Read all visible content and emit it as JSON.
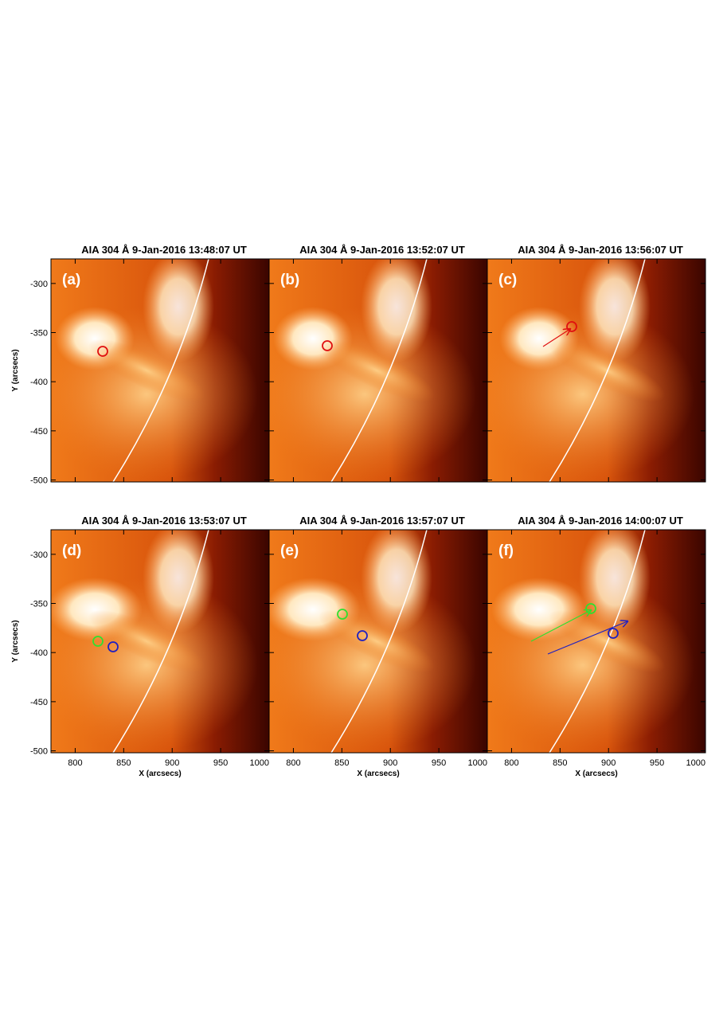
{
  "panels": [
    {
      "title": "AIA 304 Å 9-Jan-2016 13:48:07 UT",
      "label": "(a)"
    },
    {
      "title": "AIA 304 Å 9-Jan-2016 13:52:07 UT",
      "label": "(b)"
    },
    {
      "title": "AIA 304 Å 9-Jan-2016 13:56:07 UT",
      "label": "(c)"
    },
    {
      "title": "AIA 304 Å 9-Jan-2016 13:53:07 UT",
      "label": "(d)"
    },
    {
      "title": "AIA 304 Å 9-Jan-2016 13:57:07 UT",
      "label": "(e)"
    },
    {
      "title": "AIA 304 Å 9-Jan-2016 14:00:07 UT",
      "label": "(f)"
    }
  ],
  "y_axis_label": "Y (arcsecs)",
  "x_axis_label": "X (arcsecs)",
  "xlim": [
    775,
    1000
  ],
  "ylim": [
    -275,
    -502
  ],
  "xticks": [
    800,
    850,
    900,
    950,
    1000
  ],
  "yticks": [
    -300,
    -350,
    -400,
    -450,
    -500
  ]
}
